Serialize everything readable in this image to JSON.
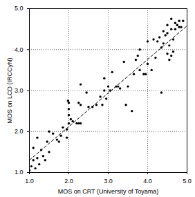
{
  "chart_data": {
    "type": "scatter",
    "x_label": "MOS on CRT (University of Toyama)",
    "y_label": "MOS on LCD (IRCCyN)",
    "xlim": [
      1,
      5
    ],
    "ylim": [
      1,
      5
    ],
    "xticks": [
      1,
      2,
      3,
      4,
      5
    ],
    "yticks": [
      1,
      2,
      3,
      4,
      5
    ],
    "grid": true,
    "series": [
      {
        "type": "scatter",
        "color": "#000000",
        "marker": "circle",
        "x": [
          1.0,
          1.05,
          1.1,
          1.15,
          1.2,
          1.25,
          1.1,
          1.2,
          1.35,
          1.4,
          1.3,
          1.45,
          1.5,
          1.6,
          1.5,
          1.7,
          1.75,
          1.85,
          1.8,
          1.95,
          1.95,
          2.0,
          2.0,
          2.0,
          2.0,
          1.98,
          2.05,
          2.1,
          2.2,
          2.25,
          2.3,
          2.25,
          2.3,
          2.3,
          2.45,
          2.5,
          2.6,
          2.7,
          2.8,
          2.85,
          2.9,
          2.9,
          2.95,
          3.0,
          3.05,
          3.1,
          3.2,
          3.25,
          3.3,
          3.4,
          3.45,
          3.5,
          3.6,
          3.65,
          3.7,
          3.75,
          3.8,
          3.8,
          3.9,
          3.95,
          4.0,
          4.0,
          4.1,
          4.15,
          4.2,
          4.25,
          4.3,
          4.35,
          4.35,
          4.4,
          4.45,
          4.5,
          4.55,
          4.5,
          4.6,
          4.6,
          4.65,
          4.65,
          4.7,
          4.75,
          4.8,
          4.8,
          4.85,
          4.9,
          4.7,
          4.6,
          4.4,
          4.5,
          4.55
        ],
        "values": [
          1.05,
          1.15,
          1.3,
          1.1,
          1.35,
          1.2,
          1.6,
          1.85,
          1.4,
          1.3,
          1.55,
          1.75,
          2.0,
          1.95,
          1.5,
          1.8,
          1.75,
          2.1,
          1.9,
          1.85,
          2.05,
          2.2,
          2.4,
          2.55,
          2.7,
          2.75,
          2.3,
          2.25,
          2.2,
          2.2,
          2.2,
          2.7,
          2.65,
          3.15,
          2.95,
          2.6,
          2.6,
          2.65,
          2.85,
          2.65,
          3.0,
          3.3,
          2.8,
          3.1,
          3.0,
          3.45,
          3.1,
          3.1,
          3.05,
          3.7,
          2.65,
          3.1,
          2.5,
          3.4,
          3.75,
          3.85,
          4.0,
          3.5,
          3.4,
          3.4,
          3.65,
          4.2,
          3.5,
          4.25,
          3.8,
          4.2,
          4.3,
          2.95,
          4.05,
          4.15,
          4.35,
          4.4,
          4.1,
          4.6,
          4.5,
          3.85,
          3.95,
          4.25,
          4.5,
          4.6,
          4.55,
          4.7,
          4.55,
          4.7,
          4.65,
          4.75,
          4.45,
          3.9,
          3.75
        ]
      },
      {
        "type": "line",
        "color": "#000000",
        "line_style": "dashed",
        "x": [
          1,
          5
        ],
        "values": [
          1.3,
          4.58
        ]
      }
    ]
  }
}
